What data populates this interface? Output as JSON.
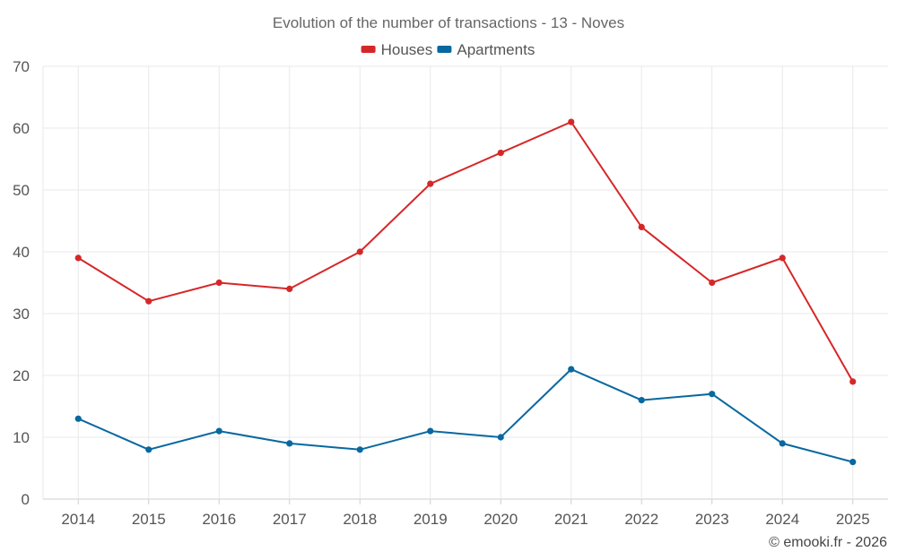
{
  "chart_data": {
    "type": "line",
    "title": "Evolution of the number of transactions - 13 - Noves",
    "categories": [
      "2014",
      "2015",
      "2016",
      "2017",
      "2018",
      "2019",
      "2020",
      "2021",
      "2022",
      "2023",
      "2024",
      "2025"
    ],
    "series": [
      {
        "name": "Houses",
        "color": "#d62728",
        "values": [
          39,
          32,
          35,
          34,
          40,
          51,
          56,
          61,
          44,
          35,
          39,
          19
        ]
      },
      {
        "name": "Apartments",
        "color": "#0868a0",
        "values": [
          13,
          8,
          11,
          9,
          8,
          11,
          10,
          21,
          16,
          17,
          9,
          6
        ]
      }
    ],
    "ylim": [
      0,
      70
    ],
    "yticks": [
      "0",
      "10",
      "20",
      "30",
      "40",
      "50",
      "60",
      "70"
    ],
    "xlabel": "",
    "ylabel": "",
    "grid": true,
    "legend_position": "top-center"
  },
  "credit": "© emooki.fr - 2026"
}
